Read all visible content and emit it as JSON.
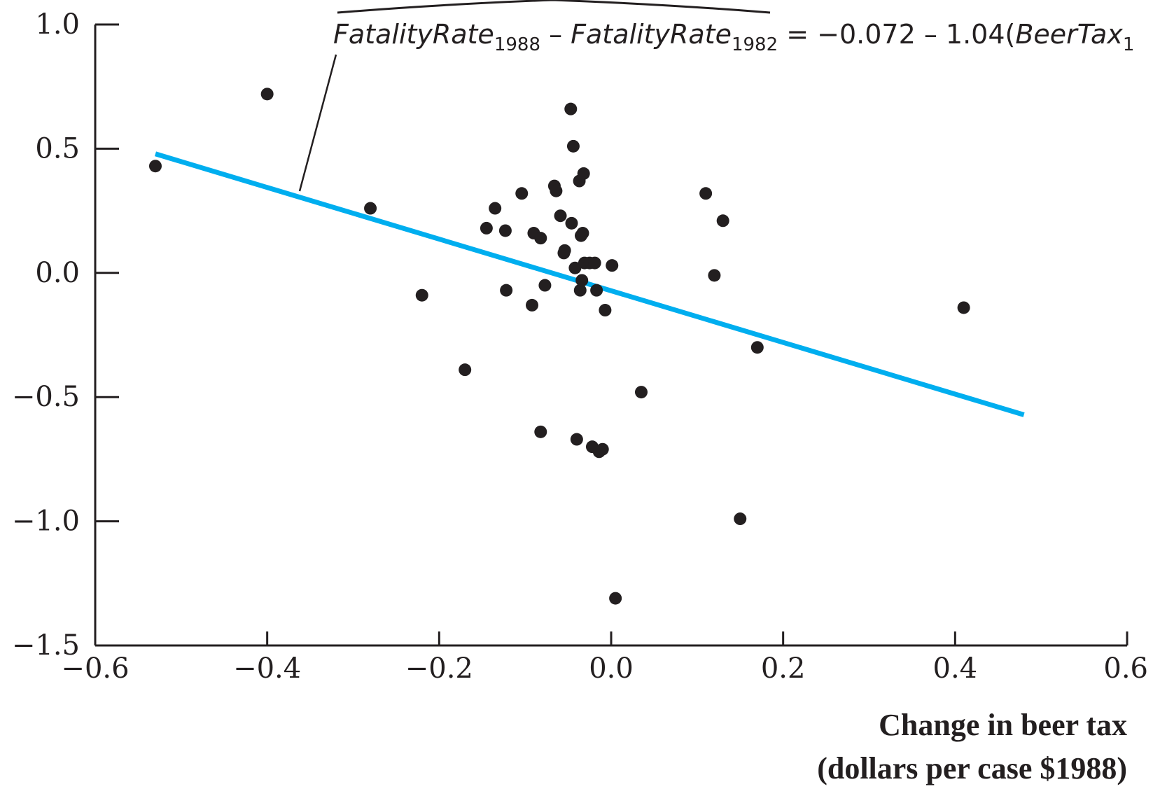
{
  "chart_data": {
    "type": "scatter",
    "title": "",
    "xlabel": "",
    "ylabel": "",
    "xlabel_lines": [
      "Change in beer tax",
      "(dollars per case $1988)"
    ],
    "xlim": [
      -0.6,
      0.6
    ],
    "ylim": [
      -1.5,
      1.0
    ],
    "xticks": [
      -0.6,
      -0.4,
      -0.2,
      0.0,
      0.2,
      0.4,
      0.6
    ],
    "yticks": [
      -1.5,
      -1.0,
      -0.5,
      0.0,
      0.5,
      1.0
    ],
    "xtick_labels": [
      "−0.6",
      "−0.4",
      "−0.2",
      "0.0",
      "0.2",
      "0.4",
      "0.6"
    ],
    "ytick_labels": [
      "−1.5",
      "−1.0",
      "−0.5",
      "0.0",
      "0.5",
      "1.0"
    ],
    "grid": false,
    "line_color": "#00aeef",
    "point_color": "#231f20",
    "axis_color": "#231f20",
    "regression": {
      "intercept": -0.072,
      "slope": -1.04,
      "x_range": [
        -0.53,
        0.48
      ]
    },
    "equation": {
      "lhs1": "FatalityRate",
      "lhs1_sub": "1988",
      "minus": " – ",
      "lhs2": "FatalityRate",
      "lhs2_sub": "1982",
      "rhs": " = −0.072 – 1.04(",
      "rhs_var": "BeerTax",
      "rhs_var_sub": "1"
    },
    "points": [
      {
        "x": -0.53,
        "y": 0.43
      },
      {
        "x": -0.4,
        "y": 0.72
      },
      {
        "x": -0.28,
        "y": 0.26
      },
      {
        "x": -0.22,
        "y": -0.09
      },
      {
        "x": -0.17,
        "y": -0.39
      },
      {
        "x": -0.145,
        "y": 0.18
      },
      {
        "x": -0.135,
        "y": 0.26
      },
      {
        "x": -0.123,
        "y": 0.17
      },
      {
        "x": -0.122,
        "y": -0.07
      },
      {
        "x": -0.104,
        "y": 0.32
      },
      {
        "x": -0.092,
        "y": -0.13
      },
      {
        "x": -0.09,
        "y": 0.16
      },
      {
        "x": -0.082,
        "y": 0.14
      },
      {
        "x": -0.082,
        "y": -0.64
      },
      {
        "x": -0.077,
        "y": -0.05
      },
      {
        "x": -0.066,
        "y": 0.35
      },
      {
        "x": -0.064,
        "y": 0.33
      },
      {
        "x": -0.059,
        "y": 0.23
      },
      {
        "x": -0.055,
        "y": 0.08
      },
      {
        "x": -0.054,
        "y": 0.09
      },
      {
        "x": -0.047,
        "y": 0.66
      },
      {
        "x": -0.046,
        "y": 0.2
      },
      {
        "x": -0.044,
        "y": 0.51
      },
      {
        "x": -0.042,
        "y": 0.02
      },
      {
        "x": -0.04,
        "y": -0.67
      },
      {
        "x": -0.037,
        "y": 0.37
      },
      {
        "x": -0.036,
        "y": -0.07
      },
      {
        "x": -0.035,
        "y": 0.15
      },
      {
        "x": -0.034,
        "y": -0.03
      },
      {
        "x": -0.033,
        "y": 0.16
      },
      {
        "x": -0.032,
        "y": 0.4
      },
      {
        "x": -0.031,
        "y": 0.04
      },
      {
        "x": -0.025,
        "y": 0.04
      },
      {
        "x": -0.022,
        "y": -0.7
      },
      {
        "x": -0.019,
        "y": 0.04
      },
      {
        "x": -0.017,
        "y": -0.07
      },
      {
        "x": -0.014,
        "y": -0.72
      },
      {
        "x": -0.01,
        "y": -0.71
      },
      {
        "x": -0.007,
        "y": -0.15
      },
      {
        "x": 0.001,
        "y": 0.03
      },
      {
        "x": 0.005,
        "y": -1.31
      },
      {
        "x": 0.035,
        "y": -0.48
      },
      {
        "x": 0.11,
        "y": 0.32
      },
      {
        "x": 0.12,
        "y": -0.01
      },
      {
        "x": 0.13,
        "y": 0.21
      },
      {
        "x": 0.15,
        "y": -0.99
      },
      {
        "x": 0.17,
        "y": -0.3
      },
      {
        "x": 0.41,
        "y": -0.14
      }
    ]
  }
}
